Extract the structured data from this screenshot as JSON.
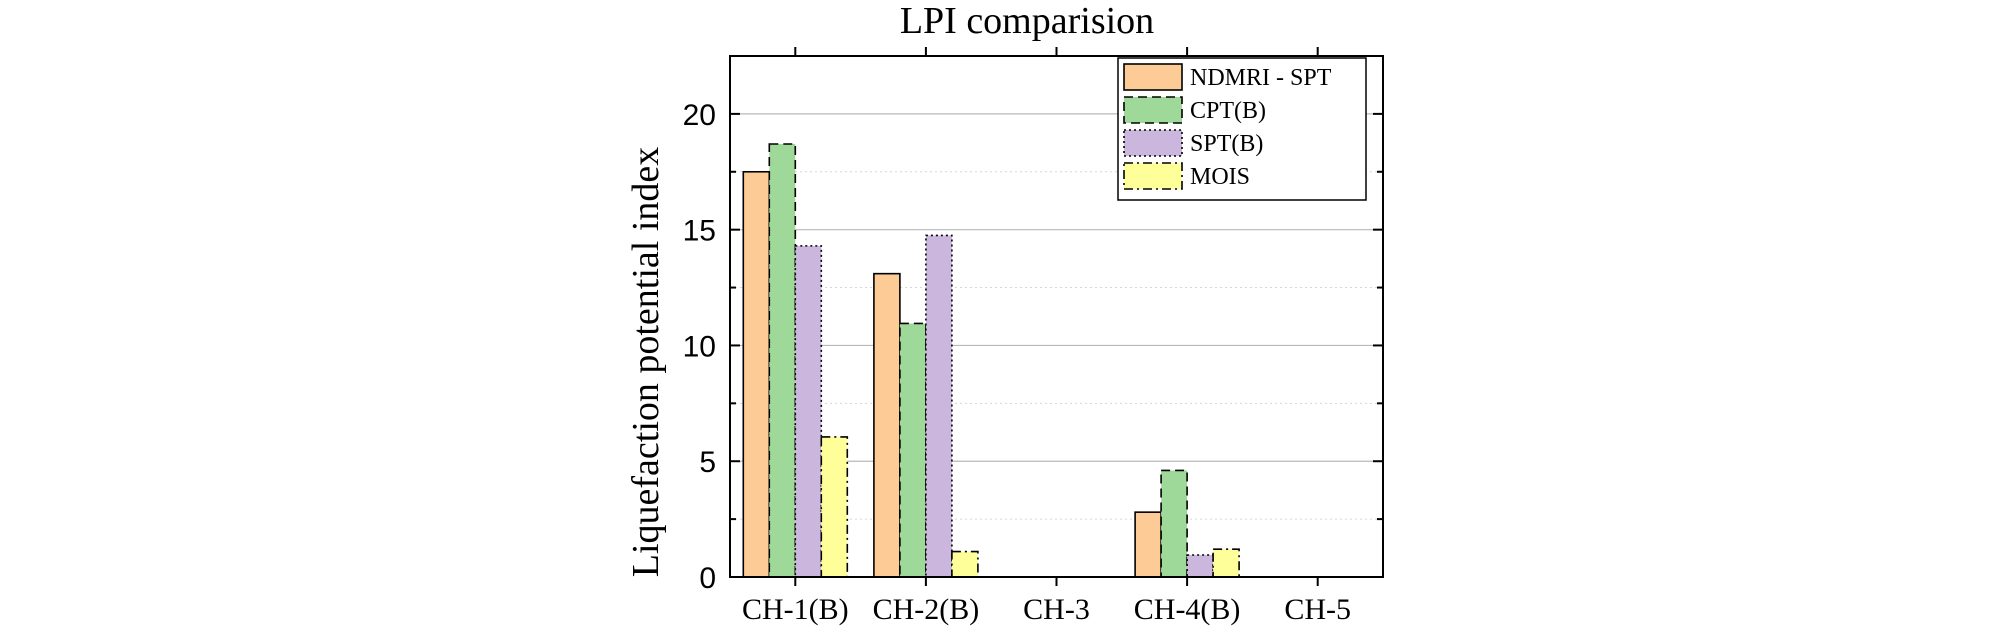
{
  "chart_data": {
    "type": "bar",
    "title": "LPI comparision",
    "xlabel": "",
    "ylabel": "Liquefaction potential index",
    "categories": [
      "CH-1(B)",
      "CH-2(B)",
      "CH-3",
      "CH-4(B)",
      "CH-5"
    ],
    "yticks": [
      "0",
      "5",
      "10",
      "15",
      "20"
    ],
    "ylim": [
      0,
      22.5
    ],
    "grid": true,
    "legend_position": "top-right",
    "series": [
      {
        "name": "NDMRI - SPT",
        "values": [
          17.5,
          13.1,
          0,
          2.8,
          0
        ],
        "color": "#fdcc96",
        "dash": "none"
      },
      {
        "name": "CPT(B)",
        "values": [
          18.7,
          10.95,
          0,
          4.6,
          0
        ],
        "color": "#9fd99a",
        "dash": "dash"
      },
      {
        "name": "SPT(B)",
        "values": [
          14.3,
          14.75,
          0,
          0.95,
          0
        ],
        "color": "#cbb7dd",
        "dash": "dot"
      },
      {
        "name": "MOIS",
        "values": [
          6.05,
          1.1,
          0,
          1.2,
          0
        ],
        "color": "#ffff99",
        "dash": "dashdot"
      }
    ]
  }
}
